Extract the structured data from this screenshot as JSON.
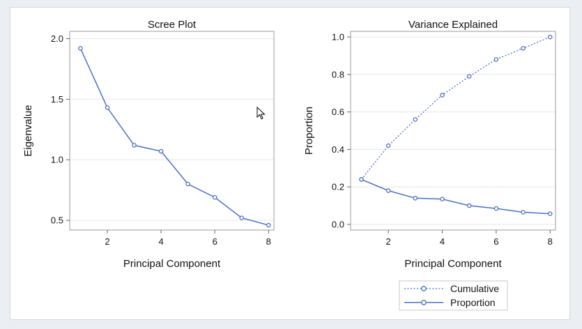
{
  "chart_data": [
    {
      "type": "line",
      "title": "Scree Plot",
      "xlabel": "Principal Component",
      "ylabel": "Eigenvalue",
      "xlim": [
        0.6,
        8.2
      ],
      "ylim": [
        0.42,
        2.06
      ],
      "xticks": [
        2,
        4,
        6,
        8
      ],
      "yticks": [
        0.5,
        1.0,
        1.5,
        2.0
      ],
      "ytick_labels": [
        "0.5",
        "1.0",
        "1.5",
        "2.0"
      ],
      "grid": "horizontal",
      "series": [
        {
          "x": [
            1,
            2,
            3,
            4,
            5,
            6,
            7,
            8
          ],
          "values": [
            1.92,
            1.43,
            1.12,
            1.07,
            0.8,
            0.69,
            0.52,
            0.46
          ],
          "color": "#4a6fc4",
          "style": "solid"
        }
      ]
    },
    {
      "type": "line",
      "title": "Variance Explained",
      "xlabel": "Principal Component",
      "ylabel": "Proportion",
      "xlim": [
        0.6,
        8.2
      ],
      "ylim": [
        -0.03,
        1.03
      ],
      "xticks": [
        2,
        4,
        6,
        8
      ],
      "yticks": [
        0.0,
        0.2,
        0.4,
        0.6,
        0.8,
        1.0
      ],
      "ytick_labels": [
        "0.0",
        "0.2",
        "0.4",
        "0.6",
        "0.8",
        "1.0"
      ],
      "grid": "horizontal",
      "legend_position": "bottom",
      "series": [
        {
          "name": "Cumulative",
          "x": [
            1,
            2,
            3,
            4,
            5,
            6,
            7,
            8
          ],
          "values": [
            0.24,
            0.42,
            0.56,
            0.69,
            0.79,
            0.88,
            0.94,
            1.0
          ],
          "color": "#4a6fc4",
          "style": "dotted"
        },
        {
          "name": "Proportion",
          "x": [
            1,
            2,
            3,
            4,
            5,
            6,
            7,
            8
          ],
          "values": [
            0.24,
            0.18,
            0.14,
            0.135,
            0.1,
            0.085,
            0.065,
            0.057
          ],
          "color": "#4a6fc4",
          "style": "solid"
        }
      ]
    }
  ]
}
